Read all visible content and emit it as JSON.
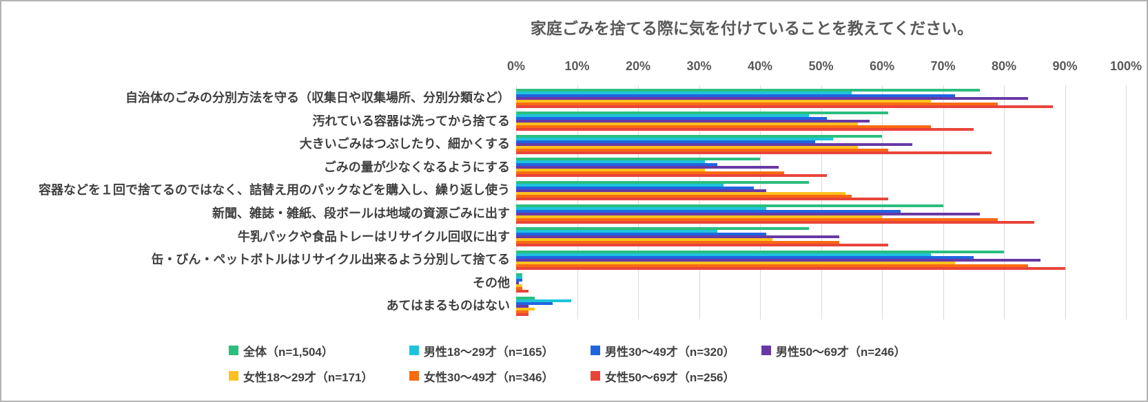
{
  "title": "家庭ごみを捨てる際に気を付けていることを教えてください。",
  "chart_data": {
    "type": "bar",
    "orientation": "horizontal",
    "title": "家庭ごみを捨てる際に気を付けていることを教えてください。",
    "xlabel": "",
    "ylabel": "",
    "xlim": [
      0,
      100
    ],
    "x_ticks": [
      "0%",
      "10%",
      "20%",
      "30%",
      "40%",
      "50%",
      "60%",
      "70%",
      "80%",
      "90%",
      "100%"
    ],
    "grid": true,
    "legend_position": "bottom",
    "categories": [
      "自治体のごみの分別方法を守る（収集日や収集場所、分別分類など）",
      "汚れている容器は洗ってから捨てる",
      "大きいごみはつぶしたり、細かくする",
      "ごみの量が少なくなるようにする",
      "容器などを１回で捨てるのではなく、詰替え用のパックなどを購入し、繰り返し使う",
      "新聞、雑誌・雑紙、段ボールは地域の資源ごみに出す",
      "牛乳パックや食品トレーはリサイクル回収に出す",
      "缶・びん・ペットボトルはリサイクル出来るよう分別して捨てる",
      "その他",
      "あてはまるものはない"
    ],
    "series": [
      {
        "name": "全体（n=1,504）",
        "color": "#2bbe7f",
        "values": [
          76,
          61,
          60,
          40,
          48,
          70,
          48,
          80,
          1,
          3
        ]
      },
      {
        "name": "男性18〜29才（n=165）",
        "color": "#1ec3db",
        "values": [
          55,
          48,
          52,
          31,
          34,
          41,
          33,
          68,
          1,
          9
        ]
      },
      {
        "name": "男性30〜49才（n=320）",
        "color": "#2065df",
        "values": [
          72,
          51,
          49,
          33,
          39,
          63,
          41,
          75,
          1,
          6
        ]
      },
      {
        "name": "男性50〜69才（n=246）",
        "color": "#6839a5",
        "values": [
          84,
          58,
          65,
          43,
          41,
          76,
          53,
          86,
          0.5,
          2
        ]
      },
      {
        "name": "女性18〜29才（n=171）",
        "color": "#ffc11e",
        "values": [
          68,
          56,
          56,
          31,
          54,
          60,
          42,
          72,
          1,
          3
        ]
      },
      {
        "name": "女性30〜49才（n=346）",
        "color": "#f96a11",
        "values": [
          79,
          68,
          61,
          44,
          55,
          79,
          53,
          84,
          1,
          2
        ]
      },
      {
        "name": "女性50〜69才（n=256）",
        "color": "#e9443a",
        "values": [
          88,
          75,
          78,
          51,
          61,
          85,
          61,
          90,
          2,
          2
        ]
      }
    ]
  }
}
